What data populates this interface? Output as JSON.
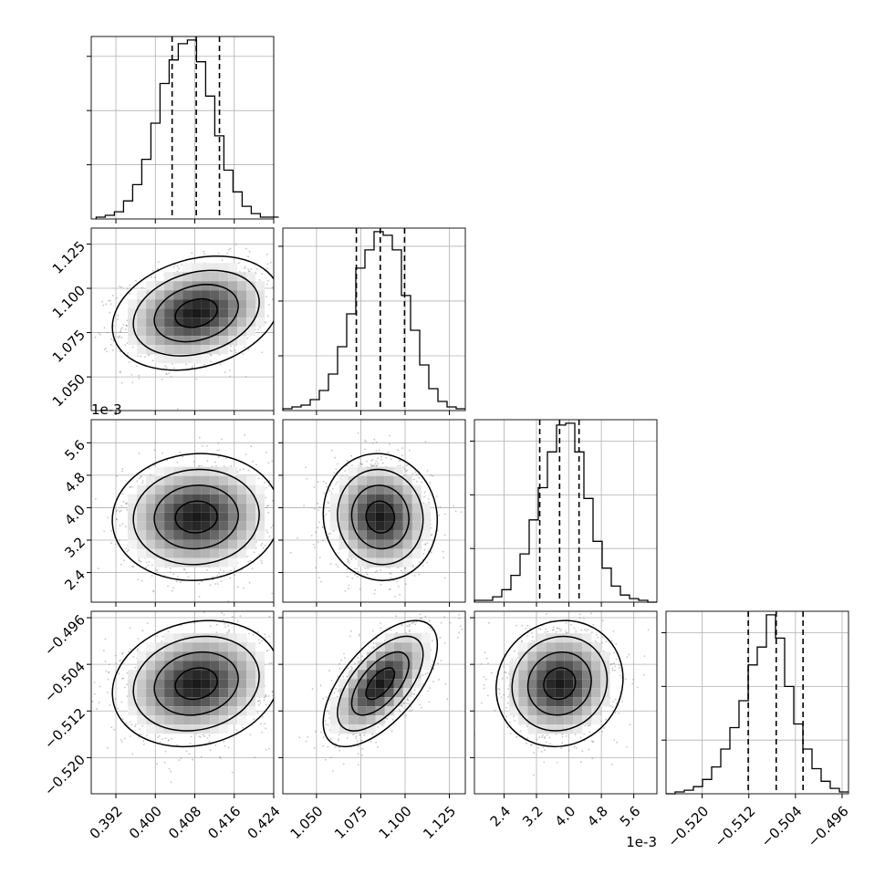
{
  "chart_data": {
    "type": "corner",
    "n_params": 4,
    "grid": true,
    "params": [
      {
        "lim": [
          0.387,
          0.424
        ],
        "ticks": [
          0.392,
          0.4,
          0.408,
          0.416,
          0.424
        ],
        "tick_labels": [
          "0.392",
          "0.400",
          "0.408",
          "0.416",
          "0.424"
        ],
        "quantiles": [
          0.4034,
          0.4083,
          0.413
        ],
        "hist_edges_start": 0.388,
        "hist_bin_width": 0.00185,
        "hist_counts": [
          1,
          2,
          4,
          10,
          19,
          33,
          53,
          75,
          88,
          97,
          99,
          87,
          68,
          46,
          27,
          15,
          7,
          3,
          1,
          1
        ]
      },
      {
        "lim": [
          1.031,
          1.134
        ],
        "ticks": [
          1.05,
          1.075,
          1.1,
          1.125
        ],
        "tick_labels": [
          "1.050",
          "1.075",
          "1.100",
          "1.125"
        ],
        "quantiles": [
          1.0725,
          1.086,
          1.0997
        ],
        "hist_edges_start": 1.031,
        "hist_bin_width": 0.00515,
        "hist_counts": [
          1,
          2,
          3,
          6,
          11,
          20,
          35,
          53,
          78,
          88,
          98,
          96,
          88,
          63,
          44,
          25,
          12,
          5,
          2,
          1
        ]
      },
      {
        "lim": [
          1.67,
          6.17
        ],
        "scale_label": "1e-3",
        "ticks": [
          2.4,
          3.2,
          4.0,
          4.8,
          5.6
        ],
        "tick_labels": [
          "2.4",
          "3.2",
          "4.0",
          "4.8",
          "5.6"
        ],
        "quantiles": [
          3.28,
          3.77,
          4.25
        ],
        "hist_edges_start": 1.67,
        "hist_bin_width": 0.225,
        "hist_counts": [
          1,
          1,
          3,
          7,
          15,
          27,
          46,
          64,
          84,
          99,
          100,
          84,
          58,
          34,
          19,
          9,
          4,
          2,
          1,
          0
        ]
      },
      {
        "lim": [
          -0.5262,
          -0.4949
        ],
        "ticks": [
          -0.52,
          -0.512,
          -0.504,
          -0.496
        ],
        "tick_labels": [
          "−0.520",
          "−0.512",
          "−0.504",
          "−0.496"
        ],
        "quantiles": [
          -0.5121,
          -0.5073,
          -0.5027
        ],
        "hist_edges_start": -0.5262,
        "hist_bin_width": 0.001565,
        "hist_counts": [
          0,
          1,
          2,
          4,
          8,
          15,
          25,
          37,
          52,
          72,
          82,
          100,
          87,
          60,
          39,
          25,
          14,
          7,
          3,
          1
        ]
      }
    ],
    "pairs": [
      {
        "x": 0,
        "y": 1,
        "center": [
          0.4083,
          1.086
        ],
        "std": [
          0.0074,
          0.014
        ],
        "corr": 0.25
      },
      {
        "x": 0,
        "y": 2,
        "center": [
          0.4083,
          3.77
        ],
        "std": [
          0.0074,
          0.68
        ],
        "corr": 0.05
      },
      {
        "x": 1,
        "y": 2,
        "center": [
          1.086,
          3.77
        ],
        "std": [
          0.014,
          0.68
        ],
        "corr": -0.05
      },
      {
        "x": 0,
        "y": 3,
        "center": [
          0.4083,
          -0.5073
        ],
        "std": [
          0.0074,
          0.0047
        ],
        "corr": 0.15
      },
      {
        "x": 1,
        "y": 3,
        "center": [
          1.086,
          -0.5073
        ],
        "std": [
          0.014,
          0.0047
        ],
        "corr": 0.62
      },
      {
        "x": 2,
        "y": 3,
        "center": [
          3.77,
          -0.5073
        ],
        "std": [
          0.68,
          0.0047
        ],
        "corr": 0.08
      }
    ],
    "contour_levels_sigma": [
      0.5,
      1.0,
      1.5,
      2.0
    ],
    "colors": {
      "line": "#000000",
      "grid": "#b0b0b0",
      "points": "#7f7f7f"
    }
  }
}
